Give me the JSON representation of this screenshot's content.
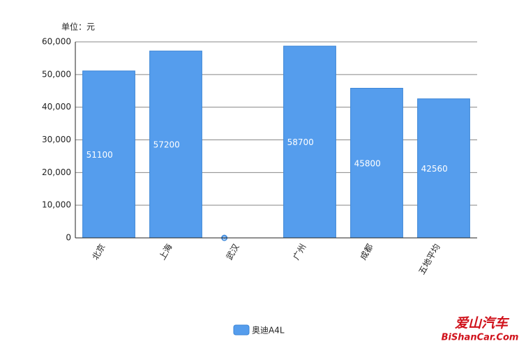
{
  "chart_data": {
    "type": "bar",
    "unit_label": "单位：元",
    "categories": [
      "北京",
      "上海",
      "武汉",
      "广州",
      "成都",
      "五地平均"
    ],
    "series": [
      {
        "name": "奥迪A4L",
        "color": "#559ded",
        "values": [
          51100,
          57200,
          0,
          58700,
          45800,
          42560
        ]
      }
    ],
    "ylim": [
      0,
      60000
    ],
    "yticks": [
      0,
      {
        "value": 10000,
        "label": "10,000"
      },
      {
        "value": 20000,
        "label": "20,000"
      },
      {
        "value": 30000,
        "label": "30,000"
      },
      {
        "value": 40000,
        "label": "40,000"
      },
      {
        "value": 50000,
        "label": "50,000"
      },
      {
        "value": 60000,
        "label": "60,000"
      }
    ],
    "grid": true
  },
  "watermark": {
    "line1": "爱山汽车",
    "line2": "BiShanCar.Com"
  }
}
